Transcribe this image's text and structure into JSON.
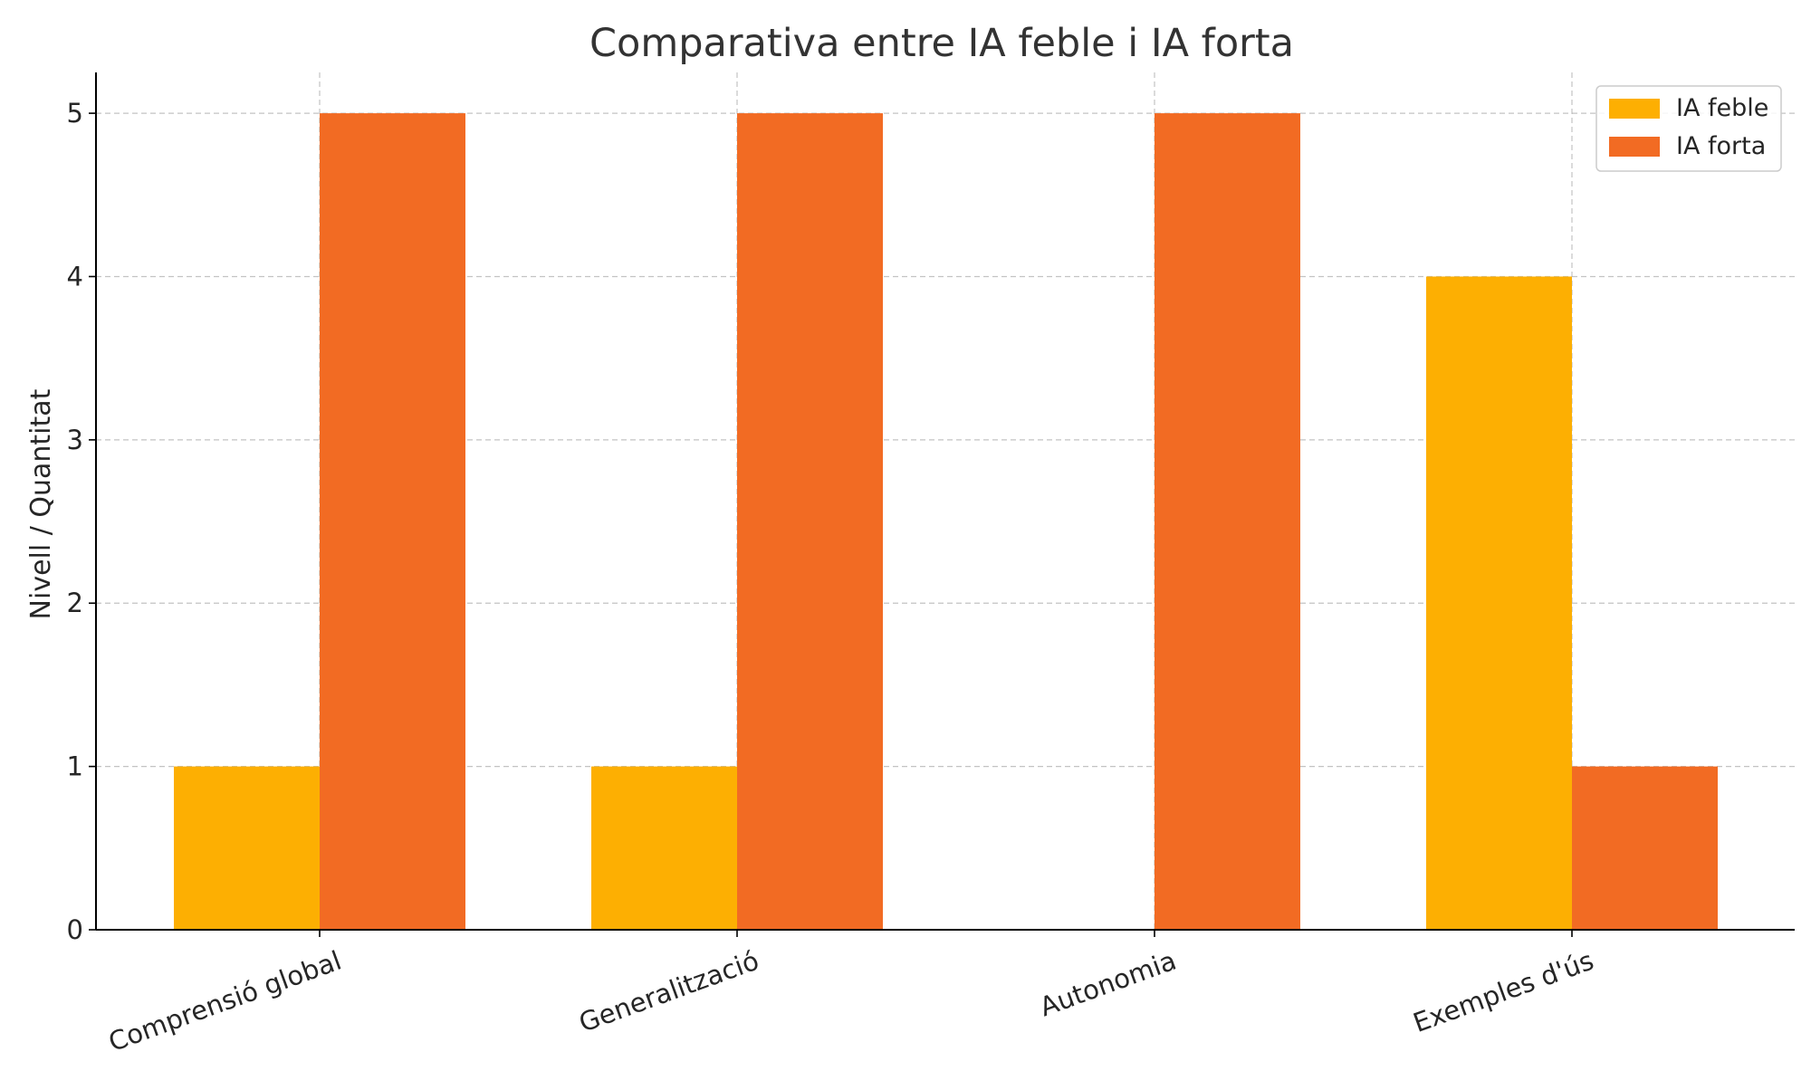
{
  "chart_data": {
    "type": "bar",
    "title": "Comparativa entre IA feble i IA forta",
    "xlabel": "",
    "ylabel": "Nivell / Quantitat",
    "categories": [
      "Comprensió global",
      "Generalització",
      "Autonomia",
      "Exemples d'ús"
    ],
    "series": [
      {
        "name": "IA feble",
        "values": [
          1,
          1,
          0,
          4
        ],
        "color": "#FDAF02"
      },
      {
        "name": "IA forta",
        "values": [
          5,
          5,
          5,
          1
        ],
        "color": "#F26B23"
      }
    ],
    "ylim": [
      0,
      5.25
    ],
    "yticks": [
      0,
      1,
      2,
      3,
      4,
      5
    ],
    "grid": true,
    "legend_position": "top-right"
  }
}
